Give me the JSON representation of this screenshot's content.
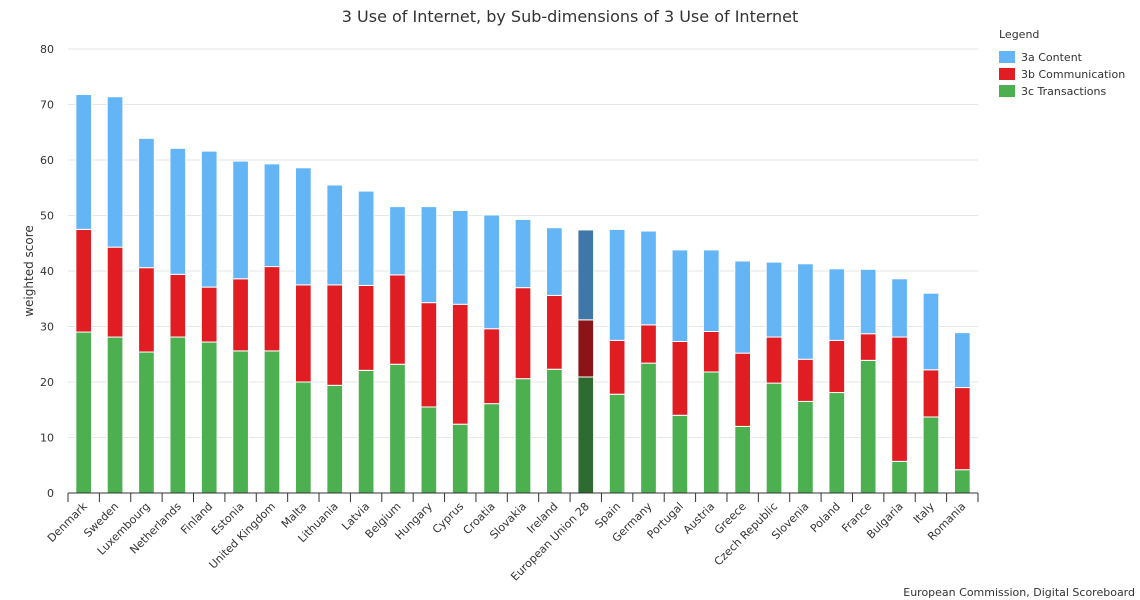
{
  "chart_data": {
    "type": "bar",
    "stacked": true,
    "title": "3 Use of Internet, by Sub-dimensions of 3 Use of Internet",
    "ylabel": "weighted score",
    "ylim": [
      0,
      80
    ],
    "yticks": [
      0,
      10,
      20,
      30,
      40,
      50,
      60,
      70,
      80
    ],
    "grid": true,
    "legend": {
      "title": "Legend",
      "placement": "top-right"
    },
    "highlight_category": "European Union 28",
    "credit": "European Commission, Digital Scoreboard",
    "categories": [
      "Denmark",
      "Sweden",
      "Luxembourg",
      "Netherlands",
      "Finland",
      "Estonia",
      "United Kingdom",
      "Malta",
      "Lithuania",
      "Latvia",
      "Belgium",
      "Hungary",
      "Cyprus",
      "Croatia",
      "Slovakia",
      "Ireland",
      "European Union 28",
      "Spain",
      "Germany",
      "Portugal",
      "Austria",
      "Greece",
      "Czech Republic",
      "Slovenia",
      "Poland",
      "France",
      "Bulgaria",
      "Italy",
      "Romania"
    ],
    "series": [
      {
        "name": "3c Transactions",
        "color": "#4caf50",
        "highlight_color": "#2e6b31",
        "values": [
          29,
          28.1,
          25.4,
          28.1,
          27.2,
          25.6,
          25.6,
          20,
          19.4,
          22.1,
          23.2,
          15.5,
          12.4,
          16.1,
          20.6,
          22.3,
          20.9,
          17.8,
          23.4,
          14,
          21.8,
          12,
          19.8,
          16.5,
          18.1,
          23.9,
          5.7,
          13.7,
          4.2
        ]
      },
      {
        "name": "3b Communication",
        "color": "#e11d24",
        "highlight_color": "#8b1419",
        "values": [
          18.5,
          16.2,
          15.2,
          11.3,
          9.9,
          13,
          15.2,
          17.5,
          18.1,
          15.3,
          16.1,
          18.8,
          21.6,
          13.5,
          16.4,
          13.3,
          10.3,
          9.7,
          6.9,
          13.3,
          7.3,
          13.2,
          8.3,
          7.6,
          9.4,
          4.8,
          22.4,
          8.5,
          14.8
        ]
      },
      {
        "name": "3a Content",
        "color": "#64b5f6",
        "highlight_color": "#3f77a8",
        "values": [
          24.3,
          27.1,
          23.3,
          22.7,
          24.5,
          21.2,
          18.5,
          21.1,
          18,
          17,
          12.3,
          17.3,
          16.9,
          20.5,
          12.3,
          12.2,
          16.2,
          20,
          16.9,
          16.5,
          14.7,
          16.6,
          13.5,
          17.2,
          12.9,
          11.6,
          10.5,
          13.8,
          9.9
        ]
      }
    ]
  }
}
